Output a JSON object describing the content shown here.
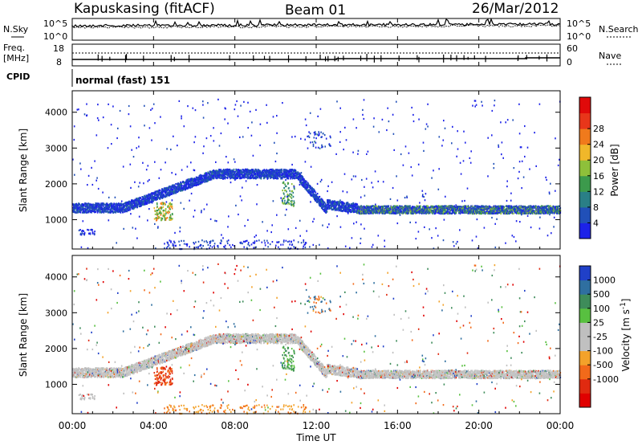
{
  "header": {
    "station": "Kapuskasing (fitACF)",
    "beam": "Beam 01",
    "date": "26/Mar/2012"
  },
  "noise_panel": {
    "left_label": "N.Sky",
    "right_label": "N.Search",
    "left_ticks": [
      "10^5",
      "10^0"
    ],
    "right_ticks": [
      "10^5",
      "10^0"
    ]
  },
  "freq_panel": {
    "left_label_line1": "Freq.",
    "left_label_line2": "[MHz]",
    "left_ticks": [
      "18",
      "8"
    ],
    "right_label": "Nave",
    "right_ticks": [
      "60",
      "0"
    ]
  },
  "cpid": {
    "label": "CPID",
    "program": "normal (fast) 151"
  },
  "chart_data": [
    {
      "type": "heatmap",
      "parameter": "power",
      "xlabel": "Time UT",
      "ylabel": "Slant Range [km]",
      "yticks": [
        "1000",
        "2000",
        "3000",
        "4000"
      ],
      "ylim": [
        180,
        4600
      ],
      "colorbar_label": "Power [dB]",
      "colorbar_ticks": [
        "4",
        "8",
        "12",
        "16",
        "20",
        "24",
        "28"
      ],
      "colorbar_colors": [
        "#1c22e8",
        "#2150b8",
        "#2a7f86",
        "#3c9a4c",
        "#8ec03a",
        "#f0b72a",
        "#f07a1c",
        "#e8361a",
        "#e00a0a"
      ]
    },
    {
      "type": "heatmap",
      "parameter": "velocity",
      "xlabel": "Time UT",
      "ylabel": "Slant Range [km]",
      "yticks": [
        "1000",
        "2000",
        "3000",
        "4000"
      ],
      "ylim": [
        180,
        4600
      ],
      "colorbar_label": "Velocity [m s^-1]",
      "colorbar_ticks": [
        "1000",
        "500",
        "100",
        "25",
        "-25",
        "-100",
        "-500",
        "-1000"
      ],
      "colorbar_colors": [
        "#2040c8",
        "#2f6fa0",
        "#3e8c5a",
        "#58c040",
        "#bfbfbf",
        "#c0c0c0",
        "#f3a22a",
        "#f26a1a",
        "#e02a10",
        "#e00000"
      ]
    }
  ],
  "time_axis": {
    "label": "Time UT",
    "ticks": [
      "00:00",
      "04:00",
      "08:00",
      "12:00",
      "16:00",
      "20:00",
      "00:00"
    ]
  }
}
